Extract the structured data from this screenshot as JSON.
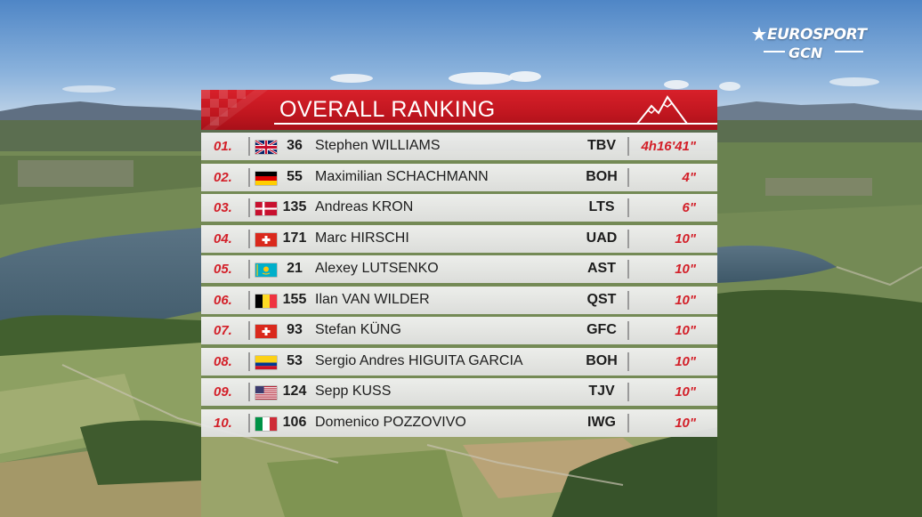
{
  "overlay": {
    "title": "OVERALL RANKING"
  },
  "broadcaster": {
    "logo_top": "EUROSPORT",
    "logo_bottom": "GCN"
  },
  "rankings": [
    {
      "position": "01.",
      "flag": "gb-flag-icon",
      "bib": "36",
      "name": "Stephen WILLIAMS",
      "team": "TBV",
      "time": "4h16'41\""
    },
    {
      "position": "02.",
      "flag": "de-flag-icon",
      "bib": "55",
      "name": "Maximilian SCHACHMANN",
      "team": "BOH",
      "time": "4\""
    },
    {
      "position": "03.",
      "flag": "dk-flag-icon",
      "bib": "135",
      "name": "Andreas KRON",
      "team": "LTS",
      "time": "6\""
    },
    {
      "position": "04.",
      "flag": "ch-flag-icon",
      "bib": "171",
      "name": "Marc HIRSCHI",
      "team": "UAD",
      "time": "10\""
    },
    {
      "position": "05.",
      "flag": "kz-flag-icon",
      "bib": "21",
      "name": "Alexey LUTSENKO",
      "team": "AST",
      "time": "10\""
    },
    {
      "position": "06.",
      "flag": "be-flag-icon",
      "bib": "155",
      "name": "Ilan VAN WILDER",
      "team": "QST",
      "time": "10\""
    },
    {
      "position": "07.",
      "flag": "ch-flag-icon",
      "bib": "93",
      "name": "Stefan KÜNG",
      "team": "GFC",
      "time": "10\""
    },
    {
      "position": "08.",
      "flag": "co-flag-icon",
      "bib": "53",
      "name": "Sergio Andres HIGUITA GARCIA",
      "team": "BOH",
      "time": "10\""
    },
    {
      "position": "09.",
      "flag": "us-flag-icon",
      "bib": "124",
      "name": "Sepp KUSS",
      "team": "TJV",
      "time": "10\""
    },
    {
      "position": "10.",
      "flag": "it-flag-icon",
      "bib": "106",
      "name": "Domenico POZZOVIVO",
      "team": "IWG",
      "time": "10\""
    }
  ],
  "colors": {
    "accent_red": "#d31f28",
    "header_red": "#c0161f",
    "row_background": "#e8e8e8"
  }
}
